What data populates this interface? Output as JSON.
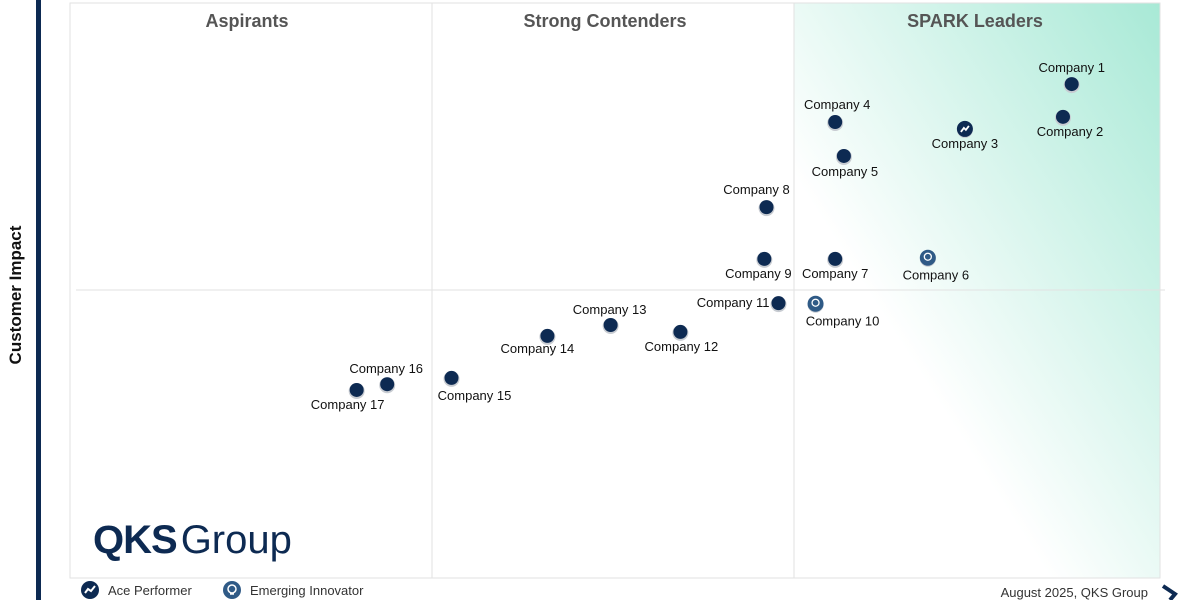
{
  "chart_data": {
    "type": "scatter",
    "ylabel": "Customer Impact",
    "xlabel": "",
    "xlim": [
      0,
      100
    ],
    "ylim": [
      0,
      100
    ],
    "grid": false,
    "quadrants": [
      "Aspirants",
      "Strong Contenders",
      "SPARK Leaders"
    ],
    "colors": {
      "point": "#0d2a52",
      "innovator": "#2f5a86",
      "leader_bg": "#a8e9d6"
    },
    "points": [
      {
        "name": "Company 1",
        "x": 91.9,
        "y": 85.9,
        "type": "standard"
      },
      {
        "name": "Company 2",
        "x": 91.1,
        "y": 80.2,
        "type": "standard"
      },
      {
        "name": "Company 3",
        "x": 82.1,
        "y": 78.1,
        "type": "ace-performer"
      },
      {
        "name": "Company 4",
        "x": 70.2,
        "y": 79.3,
        "type": "standard"
      },
      {
        "name": "Company 5",
        "x": 71.0,
        "y": 73.4,
        "type": "standard"
      },
      {
        "name": "Company 6",
        "x": 78.7,
        "y": 55.7,
        "type": "emerging-innovator"
      },
      {
        "name": "Company 7",
        "x": 70.2,
        "y": 55.5,
        "type": "standard"
      },
      {
        "name": "Company 8",
        "x": 63.9,
        "y": 64.5,
        "type": "standard"
      },
      {
        "name": "Company 9",
        "x": 63.7,
        "y": 55.5,
        "type": "standard"
      },
      {
        "name": "Company 10",
        "x": 68.4,
        "y": 47.7,
        "type": "emerging-innovator"
      },
      {
        "name": "Company 11",
        "x": 65.0,
        "y": 47.8,
        "type": "standard"
      },
      {
        "name": "Company 12",
        "x": 56.0,
        "y": 42.8,
        "type": "standard"
      },
      {
        "name": "Company 13",
        "x": 49.6,
        "y": 44.0,
        "type": "standard"
      },
      {
        "name": "Company 14",
        "x": 43.8,
        "y": 42.1,
        "type": "standard"
      },
      {
        "name": "Company 15",
        "x": 35.0,
        "y": 34.8,
        "type": "standard"
      },
      {
        "name": "Company 16",
        "x": 29.1,
        "y": 33.7,
        "type": "standard"
      },
      {
        "name": "Company 17",
        "x": 26.3,
        "y": 32.7,
        "type": "standard"
      }
    ],
    "legend": [
      {
        "label": "Ace Performer",
        "icon": "trend-line-icon"
      },
      {
        "label": "Emerging Innovator",
        "icon": "lightbulb-icon"
      }
    ],
    "legend_placement": "bottom-left"
  },
  "logo": {
    "bold": "QKS",
    "regular": "Group"
  },
  "footer": "August 2025, QKS Group"
}
